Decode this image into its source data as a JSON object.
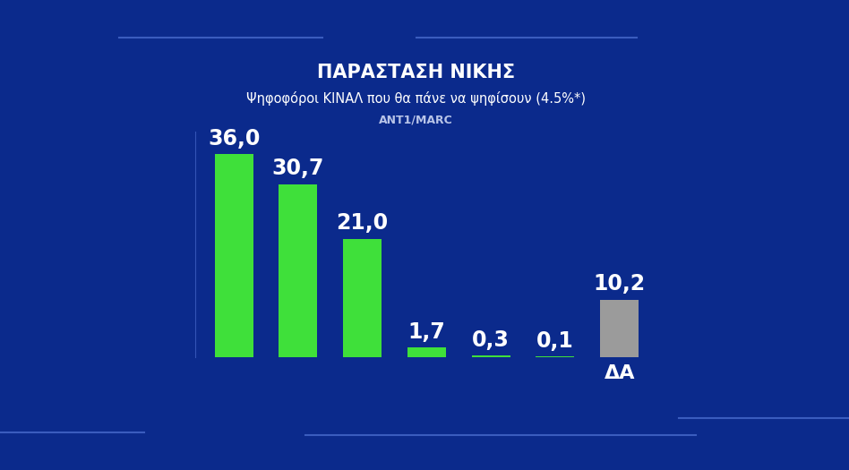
{
  "chart_data": {
    "type": "bar",
    "title": "ΠΑΡΑΣΤΑΣΗ ΝΙΚΗΣ",
    "subtitle": "Ψηφοφόροι ΚΙΝΑΛ που θα πάνε να ψηφίσουν (4.5%*)",
    "source": "ANT1/MARC",
    "categories": [
      null,
      null,
      null,
      null,
      null,
      null,
      "ΔΑ"
    ],
    "values": [
      36.0,
      30.7,
      21.0,
      1.7,
      0.3,
      0.1,
      10.2
    ],
    "value_labels": [
      "36,0",
      "30,7",
      "21,0",
      "1,7",
      "0,3",
      "0,1",
      "10,2"
    ],
    "colors": [
      "#3fe03a",
      "#3fe03a",
      "#3fe03a",
      "#3fe03a",
      "#3fe03a",
      "#3fe03a",
      "#9b9b9b"
    ],
    "ylim": [
      0,
      40
    ],
    "grid": false,
    "data_labels": true,
    "tick_labels": "x"
  }
}
